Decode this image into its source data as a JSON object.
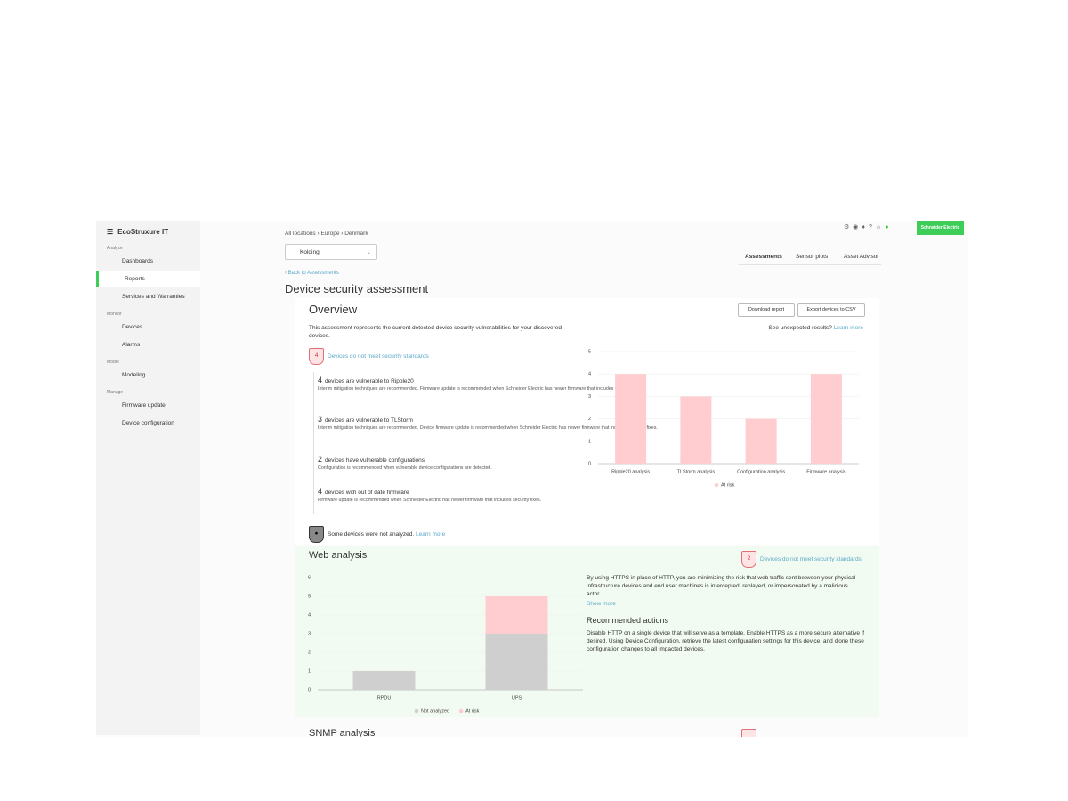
{
  "sidebar": {
    "brand": "EcoStruxure IT",
    "sections": [
      {
        "title": "Analyze",
        "items": [
          "Dashboards",
          "Reports",
          "Services and Warranties"
        ]
      },
      {
        "title": "Monitor",
        "items": [
          "Devices",
          "Alarms"
        ]
      },
      {
        "title": "Model",
        "items": [
          "Modeling"
        ]
      },
      {
        "title": "Manage",
        "items": [
          "Firmware update",
          "Device configuration"
        ]
      }
    ]
  },
  "header": {
    "breadcrumb": [
      "All locations",
      "Europe",
      "Denmark"
    ],
    "location": "Kolding",
    "tabs": [
      "Assessments",
      "Sensor plots",
      "Asset Advisor"
    ],
    "brand_button": "Schneider Electric"
  },
  "page": {
    "back_link": "Back to Assessments",
    "title": "Device security assessment"
  },
  "overview": {
    "title": "Overview",
    "buttons": [
      "Download report",
      "Export devices to CSV"
    ],
    "description": "This assessment represents the current detected device security vulnerabilities for your discovered devices.",
    "unexpected": "See unexpected results?",
    "learn_more": "Learn more",
    "badge_count": "4",
    "badge_text": "Devices do not meet security standards",
    "findings": [
      {
        "count": "4",
        "text": "devices are vulnerable to Ripple20",
        "detail": "Interim mitigation techniques are recommended. Firmware update is recommended when Schneider Electric has newer firmware that includes security fixes."
      },
      {
        "count": "3",
        "text": "devices are vulnerable to TLStorm",
        "detail": "Interim mitigation techniques are recommended. Device firmware update is recommended when Schneider Electric has newer firmware that includes security fixes."
      },
      {
        "count": "2",
        "text": "devices have vulnerable configurations",
        "detail": "Configuration is recommended when vulnerable device configurations are detected."
      },
      {
        "count": "4",
        "text": "devices with out of date firmware",
        "detail": "Firmware update is recommended when Schneider Electric has newer firmware that includes security fixes."
      }
    ],
    "not_analyzed": "Some devices were not analyzed.",
    "not_analyzed_link": "Learn more"
  },
  "web_analysis": {
    "title": "Web analysis",
    "badge_count": "2",
    "badge_text": "Devices do not meet security standards",
    "description": "By using HTTPS in place of HTTP, you are minimizing the risk that web traffic sent between your physical infrastructure devices and end user machines is intercepted, replayed, or impersonated by a malicious actor.",
    "show_more": "Show more",
    "actions_title": "Recommended actions",
    "actions": "Disable HTTP on a single device that will serve as a template. Enable HTTPS as a more secure alternative if desired. Using Device Configuration, retrieve the latest configuration settings for this device, and clone these configuration changes to all impacted devices."
  },
  "snmp_analysis": {
    "title": "SNMP analysis"
  },
  "chart_data": [
    {
      "type": "bar",
      "categories": [
        "Ripple20 analysis",
        "TLStorm analysis",
        "Configuration analysis",
        "Firmware analysis"
      ],
      "series": [
        {
          "name": "At risk",
          "color": "#ffcdd0",
          "values": [
            4,
            3,
            2,
            4
          ]
        }
      ],
      "ylim": [
        0,
        5
      ],
      "yticks": [
        0,
        1,
        2,
        3,
        4,
        5
      ],
      "grid": true
    },
    {
      "type": "stacked_bar",
      "categories": [
        "RPDU",
        "UPS"
      ],
      "series": [
        {
          "name": "Not analyzed",
          "color": "#cfcfcf",
          "values": [
            1,
            3
          ]
        },
        {
          "name": "At risk",
          "color": "#ffcdd0",
          "values": [
            0,
            2
          ]
        }
      ],
      "ylim": [
        0,
        6
      ],
      "yticks": [
        0,
        1,
        2,
        3,
        4,
        5,
        6
      ],
      "grid": true
    }
  ]
}
